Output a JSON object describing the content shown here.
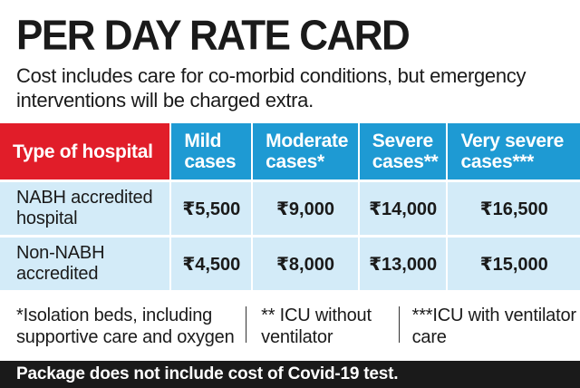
{
  "title": "PER DAY RATE CARD",
  "subtitle": "Cost includes care for co-morbid conditions, but emergency interventions will be charged extra.",
  "colors": {
    "header_red": "#e11d29",
    "header_blue": "#1e9ad3",
    "row_bg": "#d3ebf8",
    "footer_bg": "#1a1a1a"
  },
  "table": {
    "headers": [
      "Type of hospital",
      "Mild cases",
      "Moderate cases*",
      "Severe cases**",
      "Very severe cases***"
    ],
    "rows": [
      {
        "type": "NABH accredited hospital",
        "mild": "₹5,500",
        "moderate": "₹9,000",
        "severe": "₹14,000",
        "very_severe": "₹16,500"
      },
      {
        "type": "Non-NABH accredited",
        "mild": "₹4,500",
        "moderate": "₹8,000",
        "severe": "₹13,000",
        "very_severe": "₹15,000"
      }
    ]
  },
  "notes": [
    "*Isolation beds, including supportive care and oxygen",
    "** ICU without ventilator",
    "***ICU with ventilator care"
  ],
  "footer": "Package does not include cost of Covid-19 test."
}
